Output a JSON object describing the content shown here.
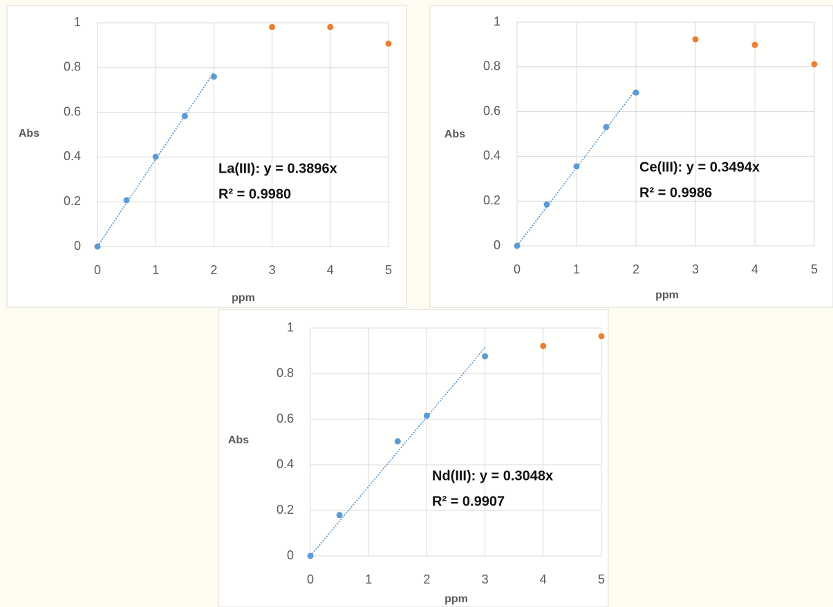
{
  "chart_data": [
    {
      "type": "scatter",
      "x_label": "ppm",
      "y_label": "Abs",
      "xlim": [
        0,
        5
      ],
      "xticks": [
        0,
        1,
        2,
        3,
        4,
        5
      ],
      "ylim": [
        0,
        1
      ],
      "yticks": [
        0,
        0.2,
        0.4,
        0.6,
        0.8,
        1
      ],
      "grid": true,
      "annotations": [
        "La(III): y = 0.3896x",
        "R² = 0.9980"
      ],
      "series": [
        {
          "color": "#5b9bd5",
          "x": [
            0,
            0.5,
            1,
            1.5,
            2
          ],
          "values": [
            0,
            0.207,
            0.401,
            0.583,
            0.759
          ],
          "trendline_slope": 0.3896
        },
        {
          "color": "#ed7d31",
          "x": [
            3,
            4,
            5
          ],
          "values": [
            0.981,
            0.981,
            0.907
          ]
        }
      ]
    },
    {
      "type": "scatter",
      "x_label": "ppm",
      "y_label": "Abs",
      "xlim": [
        0,
        5
      ],
      "xticks": [
        0,
        1,
        2,
        3,
        4,
        5
      ],
      "ylim": [
        0,
        1
      ],
      "yticks": [
        0,
        0.2,
        0.4,
        0.6,
        0.8,
        1
      ],
      "grid": true,
      "annotations": [
        "Ce(III): y = 0.3494x",
        "R² = 0.9986"
      ],
      "series": [
        {
          "color": "#5b9bd5",
          "x": [
            0,
            0.5,
            1,
            1.5,
            2
          ],
          "values": [
            0,
            0.185,
            0.355,
            0.531,
            0.685
          ],
          "trendline_slope": 0.3494
        },
        {
          "color": "#ed7d31",
          "x": [
            3,
            4,
            5
          ],
          "values": [
            0.923,
            0.898,
            0.812
          ]
        }
      ]
    },
    {
      "type": "scatter",
      "x_label": "ppm",
      "y_label": "Abs",
      "xlim": [
        0,
        5
      ],
      "xticks": [
        0,
        1,
        2,
        3,
        4,
        5
      ],
      "ylim": [
        0,
        1
      ],
      "yticks": [
        0,
        0.2,
        0.4,
        0.6,
        0.8,
        1
      ],
      "grid": true,
      "annotations": [
        "Nd(III): y = 0.3048x",
        "R² = 0.9907"
      ],
      "series": [
        {
          "color": "#5b9bd5",
          "x": [
            0,
            0.5,
            1.5,
            2,
            3
          ],
          "values": [
            0,
            0.179,
            0.503,
            0.615,
            0.876
          ],
          "trendline_slope": 0.3048
        },
        {
          "color": "#ed7d31",
          "x": [
            4,
            5
          ],
          "values": [
            0.921,
            0.964
          ]
        }
      ]
    }
  ]
}
